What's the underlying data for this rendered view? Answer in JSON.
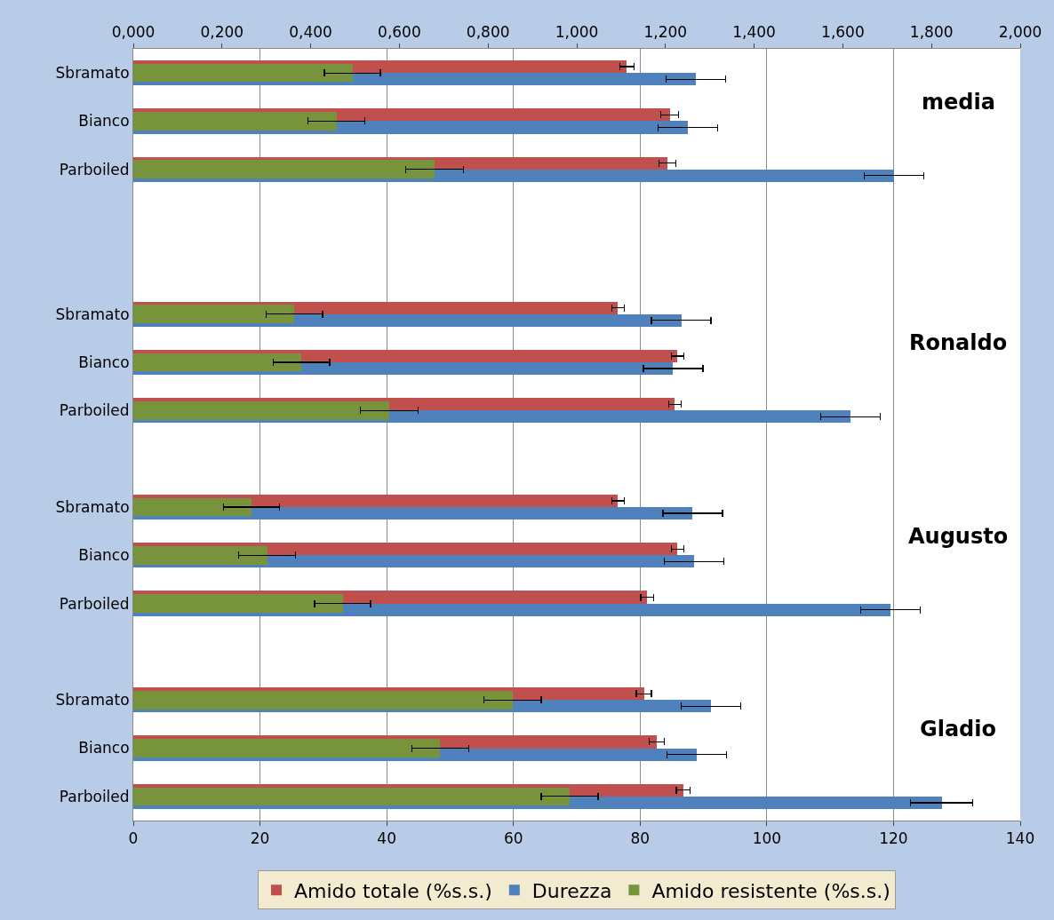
{
  "chart_data": {
    "type": "bar",
    "orientation": "horizontal",
    "categories": [
      "Sbramato",
      "Bianco",
      "Parboiled",
      null,
      null,
      "Sbramato",
      "Bianco",
      "Parboiled",
      null,
      "Sbramato",
      "Bianco",
      "Parboiled",
      null,
      "Sbramato",
      "Bianco",
      "Parboiled"
    ],
    "series": [
      {
        "name": "Amido totale (%s.s.)",
        "color": "#c0504d",
        "values": [
          77.9,
          84.7,
          84.3,
          null,
          null,
          76.5,
          85.9,
          85.5,
          null,
          76.5,
          85.9,
          81.1,
          null,
          80.6,
          82.6,
          86.8
        ],
        "errors": [
          1.1,
          1.4,
          1.3,
          null,
          null,
          1.0,
          1.0,
          1.0,
          null,
          1.0,
          1.0,
          1.0,
          null,
          1.2,
          1.2,
          1.1
        ]
      },
      {
        "name": "Durezza",
        "color": "#4f81bd",
        "values": [
          88.8,
          87.5,
          120.1,
          null,
          null,
          86.5,
          85.2,
          113.2,
          null,
          88.3,
          88.5,
          119.5,
          null,
          91.2,
          88.9,
          127.6
        ],
        "errors": [
          4.7,
          4.7,
          4.7,
          null,
          null,
          4.7,
          4.7,
          4.7,
          null,
          4.7,
          4.7,
          4.7,
          null,
          4.7,
          4.7,
          4.9
        ]
      },
      {
        "name": "Amido resistente (%s.s.)",
        "color": "#77933c",
        "axis": "x2",
        "values": [
          0.494,
          0.458,
          0.679,
          null,
          null,
          0.363,
          0.379,
          0.577,
          null,
          0.266,
          0.302,
          0.472,
          null,
          0.855,
          0.692,
          0.984
        ],
        "errors": [
          0.063,
          0.064,
          0.065,
          null,
          null,
          0.064,
          0.064,
          0.065,
          null,
          0.063,
          0.064,
          0.063,
          null,
          0.065,
          0.064,
          0.064
        ]
      }
    ],
    "xlim": [
      0,
      140
    ],
    "xticks": [
      0,
      20,
      40,
      60,
      80,
      100,
      120,
      140
    ],
    "x2lim": [
      0,
      2
    ],
    "x2ticks": [
      {
        "value": 0,
        "label": "0,000"
      },
      {
        "value": 0.2,
        "label": "0,200"
      },
      {
        "value": 0.4,
        "label": "0,400"
      },
      {
        "value": 0.6,
        "label": "0,600"
      },
      {
        "value": 0.8,
        "label": "0,800"
      },
      {
        "value": 1.0,
        "label": "1,000"
      },
      {
        "value": 1.2,
        "label": "1,200"
      },
      {
        "value": 1.4,
        "label": "1,400"
      },
      {
        "value": 1.6,
        "label": "1,600"
      },
      {
        "value": 1.8,
        "label": "1,800"
      },
      {
        "value": 2.0,
        "label": "2,000"
      }
    ],
    "annotations": [
      "media",
      "Ronaldo",
      "Augusto",
      "Gladio"
    ],
    "grid": "x",
    "legend": "bottom"
  }
}
